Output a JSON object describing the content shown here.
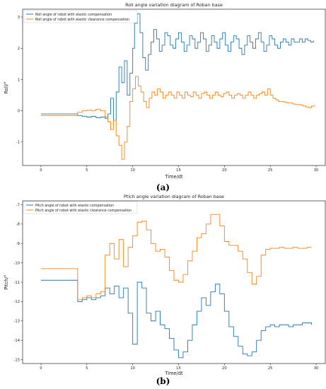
{
  "panels": [
    "(a)",
    "(b)"
  ],
  "chart_data": [
    {
      "type": "line",
      "step": true,
      "title": "Roll angle variation diagram of Roban base",
      "xlabel": "Time/dt",
      "ylabel": "Roll/°",
      "xlim": [
        -2,
        31
      ],
      "ylim": [
        -1.75,
        3.25
      ],
      "xticks": [
        0,
        5,
        10,
        15,
        20,
        25,
        30
      ],
      "yticks": [
        -1,
        0,
        1,
        2,
        3
      ],
      "legend_position": "top-left",
      "colors": [
        "#1f77b4",
        "#ff7f0e"
      ],
      "series": [
        {
          "name": "Roll angle of robot with elastic compensation",
          "x": [
            0,
            4,
            4.5,
            5,
            5.5,
            6,
            6.5,
            7,
            7.3,
            7.6,
            7.9,
            8.2,
            8.5,
            8.8,
            9.1,
            9.4,
            9.7,
            10,
            10.2,
            10.5,
            10.8,
            11.1,
            11.4,
            11.7,
            12,
            12.3,
            12.6,
            12.9,
            13.2,
            13.5,
            13.8,
            14.1,
            14.4,
            14.7,
            15,
            15.3,
            15.6,
            15.9,
            16.2,
            16.5,
            16.8,
            17.1,
            17.4,
            17.7,
            18,
            18.3,
            18.6,
            18.9,
            19.2,
            19.5,
            19.8,
            20.1,
            20.4,
            20.7,
            21,
            21.3,
            21.6,
            21.9,
            22.2,
            22.5,
            22.8,
            23.1,
            23.4,
            23.7,
            24,
            24.3,
            24.6,
            24.9,
            25.2,
            25.5,
            25.8,
            26.1,
            26.4,
            26.7,
            27,
            27.3,
            27.6,
            27.9,
            28.2,
            28.5,
            28.8,
            29.1,
            29.4,
            29.7
          ],
          "y": [
            -0.1,
            -0.15,
            -0.18,
            -0.2,
            -0.18,
            -0.22,
            -0.2,
            -0.25,
            -0.1,
            0.4,
            -0.3,
            0.6,
            1.4,
            0.9,
            1.6,
            0.5,
            1.2,
            2.0,
            2.8,
            3.1,
            2.5,
            1.7,
            1.3,
            1.8,
            2.2,
            2.6,
            2.3,
            1.9,
            2.1,
            2.5,
            2.4,
            2.1,
            2.0,
            2.3,
            2.5,
            2.2,
            1.9,
            2.1,
            2.4,
            2.3,
            2.0,
            2.2,
            2.5,
            2.3,
            1.9,
            2.1,
            2.4,
            2.2,
            2.0,
            2.3,
            2.5,
            2.1,
            1.9,
            2.2,
            2.4,
            2.3,
            2.0,
            1.8,
            2.1,
            2.4,
            2.2,
            2.0,
            2.3,
            2.5,
            2.2,
            1.9,
            2.1,
            2.4,
            2.3,
            2.1,
            2.0,
            2.2,
            2.3,
            2.2,
            2.1,
            2.3,
            2.2,
            2.2,
            2.3,
            2.2,
            2.3,
            2.25,
            2.2,
            2.25
          ]
        },
        {
          "name": "Roll angle of robot with elastic clearance compensation",
          "x": [
            0,
            4,
            4.5,
            5,
            5.5,
            6,
            6.5,
            7,
            7.3,
            7.6,
            7.9,
            8.2,
            8.5,
            8.8,
            9.1,
            9.4,
            9.7,
            10,
            10.3,
            10.6,
            10.9,
            11.2,
            11.5,
            11.8,
            12.1,
            12.4,
            12.7,
            13,
            13.3,
            13.6,
            13.9,
            14.2,
            14.5,
            14.8,
            15.1,
            15.4,
            15.7,
            16,
            16.3,
            16.6,
            16.9,
            17.2,
            17.5,
            17.8,
            18.1,
            18.4,
            18.7,
            19,
            19.3,
            19.6,
            19.9,
            20.2,
            20.5,
            20.8,
            21.1,
            21.4,
            21.7,
            22,
            22.3,
            22.6,
            22.9,
            23.2,
            23.5,
            23.8,
            24.1,
            24.4,
            24.7,
            25,
            25.3,
            25.6,
            25.9,
            26.2,
            26.5,
            26.8,
            27.1,
            27.4,
            27.7,
            28,
            28.3,
            28.6,
            28.9,
            29.2,
            29.5,
            29.8
          ],
          "y": [
            -0.15,
            -0.05,
            0,
            0.02,
            0,
            0.05,
            0,
            -0.2,
            -0.35,
            -0.6,
            -0.3,
            -0.8,
            -1.1,
            -1.55,
            -1.0,
            -0.5,
            0.3,
            0.7,
            1.1,
            0.8,
            0.6,
            0.3,
            0.1,
            0.4,
            0.6,
            0.5,
            0.7,
            0.6,
            0.4,
            0.5,
            0.6,
            0.5,
            0.4,
            0.6,
            0.5,
            0.4,
            0.6,
            0.5,
            0.45,
            0.6,
            0.5,
            0.4,
            0.55,
            0.6,
            0.5,
            0.4,
            0.5,
            0.6,
            0.5,
            0.45,
            0.55,
            0.6,
            0.5,
            0.4,
            0.5,
            0.55,
            0.5,
            0.4,
            0.5,
            0.6,
            0.5,
            0.4,
            0.5,
            0.55,
            0.6,
            0.5,
            0.7,
            0.5,
            0.4,
            0.35,
            0.3,
            0.3,
            0.28,
            0.25,
            0.25,
            0.22,
            0.2,
            0.2,
            0.18,
            0.15,
            0.12,
            0.1,
            0.15,
            0.18
          ]
        }
      ]
    },
    {
      "type": "line",
      "step": true,
      "title": "Ptich angle variation diagram of Roban base",
      "xlabel": "Time/dt",
      "ylabel": "Pitch/°",
      "xlim": [
        -2,
        31
      ],
      "ylim": [
        -15.2,
        -6.8
      ],
      "xticks": [
        0,
        5,
        10,
        15,
        20,
        25,
        30
      ],
      "yticks": [
        -15,
        -14,
        -13,
        -12,
        -11,
        -10,
        -9,
        -8,
        -7
      ],
      "legend_position": "top-left",
      "colors": [
        "#1f77b4",
        "#ff7f0e"
      ],
      "series": [
        {
          "name": "Pitch angle of robot with elastic compensation",
          "x": [
            0,
            3.5,
            4,
            4.5,
            5,
            5.5,
            6,
            6.5,
            7,
            7.5,
            8,
            8.5,
            9,
            9.5,
            10,
            10.5,
            11,
            11.5,
            12,
            12.5,
            13,
            13.5,
            14,
            14.5,
            15,
            15.5,
            16,
            16.5,
            17,
            17.5,
            18,
            18.5,
            19,
            19.5,
            20,
            20.5,
            21,
            21.5,
            22,
            22.5,
            23,
            23.5,
            24,
            24.5,
            25,
            25.5,
            26,
            26.5,
            27,
            27.5,
            28,
            28.5,
            29,
            29.5
          ],
          "y": [
            -10.9,
            -10.9,
            -12.0,
            -11.9,
            -11.8,
            -11.9,
            -11.8,
            -11.7,
            -11.3,
            -11.6,
            -11.2,
            -11.8,
            -11.3,
            -12.6,
            -14.2,
            -11.0,
            -11.3,
            -12.6,
            -13.0,
            -12.5,
            -13.2,
            -13.4,
            -13.9,
            -14.5,
            -14.9,
            -14.6,
            -14.0,
            -13.2,
            -12.5,
            -11.8,
            -12.2,
            -11.5,
            -11.1,
            -11.6,
            -12.5,
            -13.3,
            -13.8,
            -14.3,
            -14.7,
            -14.8,
            -14.6,
            -14.0,
            -13.5,
            -13.3,
            -13.2,
            -13.3,
            -13.2,
            -13.2,
            -13.3,
            -13.2,
            -13.2,
            -13.1,
            -13.1,
            -13.2
          ]
        },
        {
          "name": "Pitch angle of robot with elastic clearance compensation",
          "x": [
            0,
            3.5,
            4,
            4.5,
            5,
            5.5,
            6,
            6.5,
            7,
            7.5,
            8,
            8.5,
            9,
            9.5,
            10,
            10.5,
            11,
            11.5,
            12,
            12.5,
            13,
            13.5,
            14,
            14.5,
            15,
            15.5,
            16,
            16.5,
            17,
            17.5,
            18,
            18.5,
            19,
            19.5,
            20,
            20.5,
            21,
            21.5,
            22,
            22.5,
            23,
            23.5,
            24,
            24.5,
            25,
            25.5,
            26,
            26.5,
            27,
            27.5,
            28,
            28.5,
            29,
            29.5
          ],
          "y": [
            -10.3,
            -10.3,
            -11.9,
            -11.8,
            -11.7,
            -11.8,
            -11.6,
            -11.5,
            -9.6,
            -9.0,
            -9.8,
            -8.8,
            -10.2,
            -9.2,
            -8.6,
            -7.9,
            -7.85,
            -8.3,
            -9.0,
            -9.4,
            -9.3,
            -9.7,
            -10.4,
            -10.9,
            -11.0,
            -10.6,
            -9.9,
            -9.4,
            -8.7,
            -8.5,
            -8.0,
            -7.5,
            -7.5,
            -8.1,
            -8.9,
            -9.1,
            -9.1,
            -9.4,
            -9.8,
            -10.5,
            -11.1,
            -10.7,
            -9.6,
            -9.3,
            -9.25,
            -9.25,
            -9.2,
            -9.25,
            -9.25,
            -9.2,
            -9.25,
            -9.25,
            -9.2,
            -9.2
          ]
        }
      ]
    }
  ]
}
